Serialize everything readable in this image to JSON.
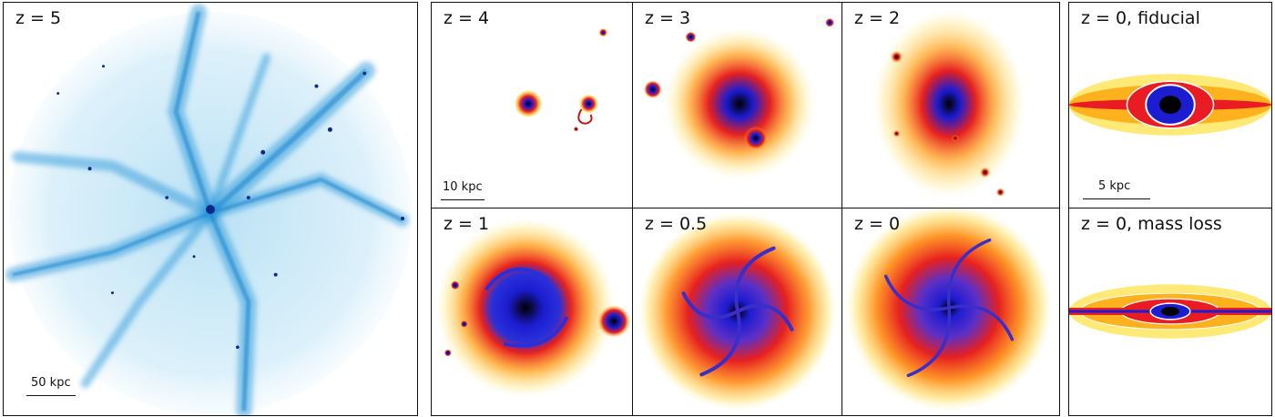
{
  "panels": {
    "z5": {
      "label": "z = 5",
      "scale": "50 kpc"
    },
    "z4": {
      "label": "z = 4",
      "scale": "10 kpc"
    },
    "z3": {
      "label": "z = 3"
    },
    "z2": {
      "label": "z = 2"
    },
    "z1": {
      "label": "z = 1"
    },
    "z05": {
      "label": "z = 0.5"
    },
    "z0": {
      "label": "z = 0"
    },
    "fid": {
      "label": "z = 0, fiducial",
      "scale": "5 kpc"
    },
    "mass": {
      "label": "z = 0, mass loss"
    }
  }
}
